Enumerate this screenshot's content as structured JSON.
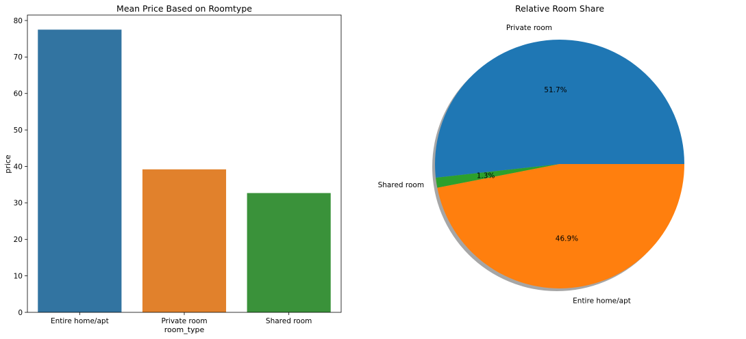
{
  "chart_data": [
    {
      "type": "bar",
      "title": "Mean Price Based on Roomtype",
      "xlabel": "room_type",
      "ylabel": "price",
      "categories": [
        "Entire home/apt",
        "Private room",
        "Shared room"
      ],
      "values": [
        77.5,
        39.2,
        32.7
      ],
      "ylim": [
        0,
        81.5
      ],
      "yticks": [
        0,
        10,
        20,
        30,
        40,
        50,
        60,
        70,
        80
      ],
      "colors": [
        "#3274a1",
        "#e1812c",
        "#3a923a"
      ],
      "grid": false
    },
    {
      "type": "pie",
      "title": "Relative Room Share",
      "labels": [
        "Private room",
        "Shared room",
        "Entire home/apt"
      ],
      "values": [
        51.7,
        1.3,
        46.9
      ],
      "value_labels": [
        "51.7%",
        "1.3%",
        "46.9%"
      ],
      "colors": [
        "#1f77b4",
        "#2ca02c",
        "#ff7f0e"
      ],
      "shadow": true
    }
  ]
}
